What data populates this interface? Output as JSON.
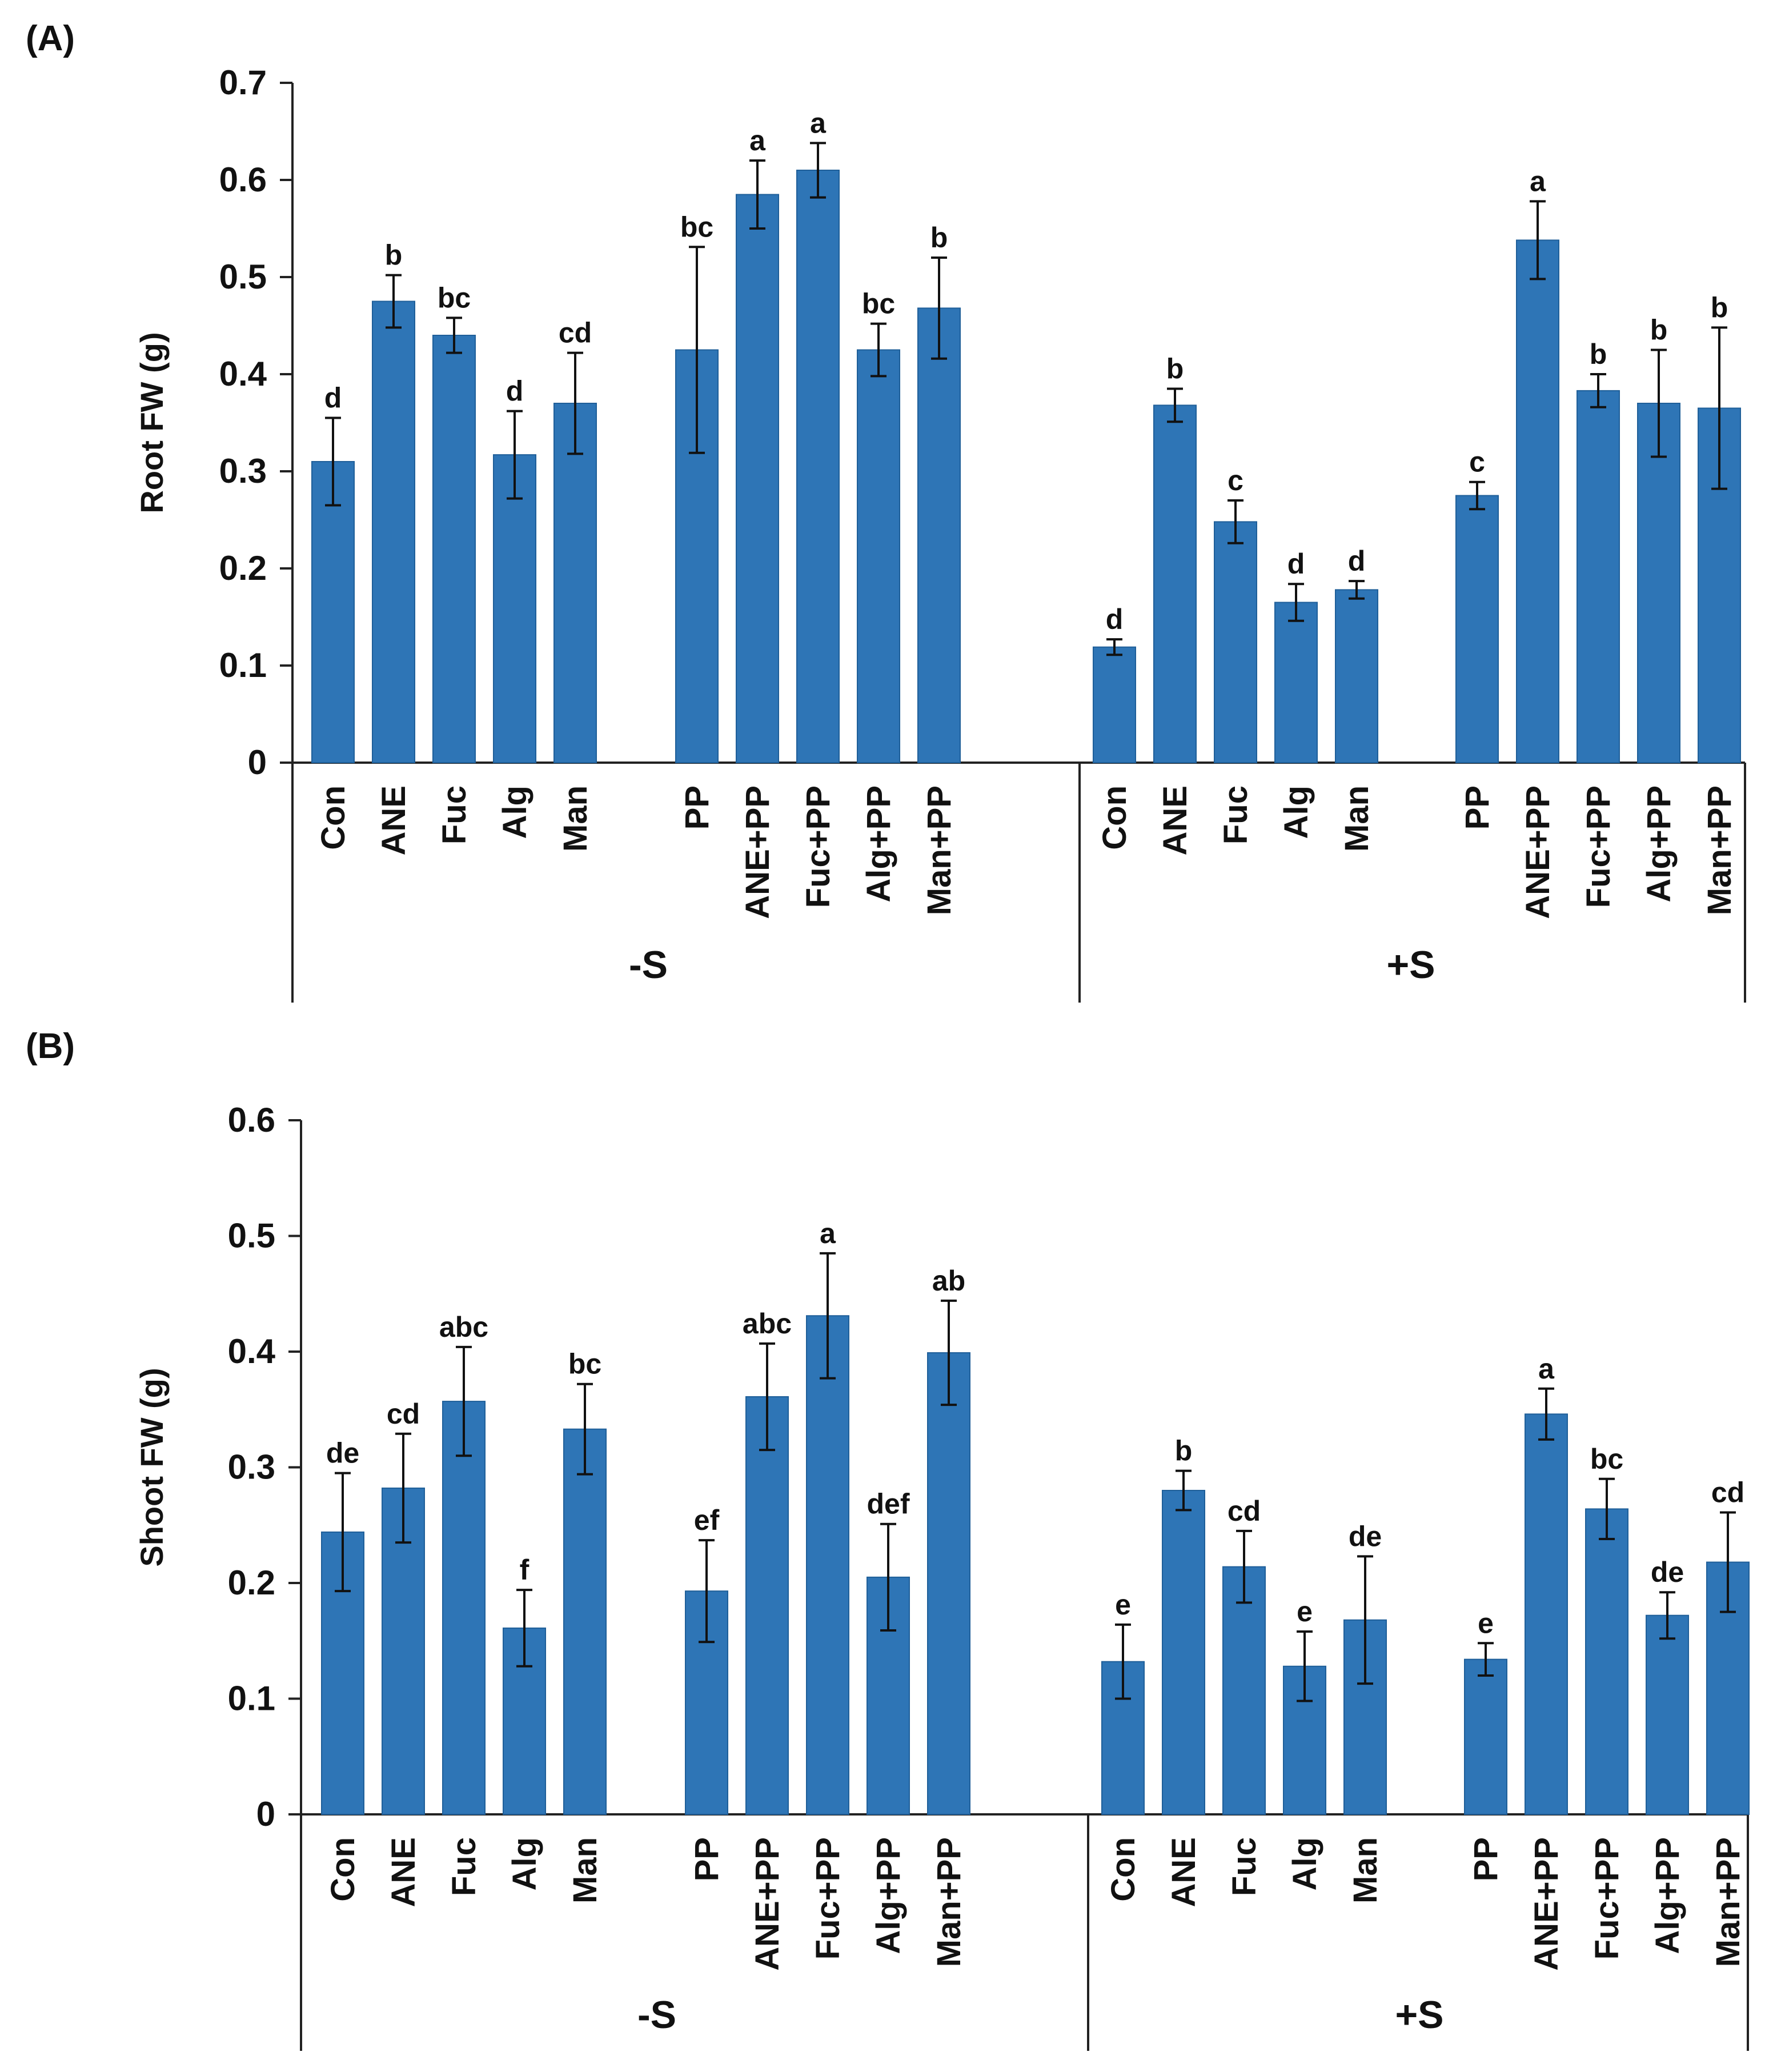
{
  "chart_data": [
    {
      "panel_label": "(A)",
      "type": "bar",
      "ylabel": "Root FW (g)",
      "ylim": [
        0,
        0.7
      ],
      "yticks": [
        "0",
        "0.1",
        "0.2",
        "0.3",
        "0.4",
        "0.5",
        "0.6",
        "0.7"
      ],
      "color": "#2e75b6",
      "groups": [
        {
          "label": "-S",
          "bars": [
            {
              "category": "Con",
              "value": 0.31,
              "error": 0.045,
              "letter": "d"
            },
            {
              "category": "ANE",
              "value": 0.475,
              "error": 0.027,
              "letter": "b"
            },
            {
              "category": "Fuc",
              "value": 0.44,
              "error": 0.018,
              "letter": "bc"
            },
            {
              "category": "Alg",
              "value": 0.317,
              "error": 0.045,
              "letter": "d"
            },
            {
              "category": "Man",
              "value": 0.37,
              "error": 0.052,
              "letter": "cd"
            },
            {
              "category": "PP",
              "value": 0.425,
              "error": 0.106,
              "letter": "bc"
            },
            {
              "category": "ANE+PP",
              "value": 0.585,
              "error": 0.035,
              "letter": "a"
            },
            {
              "category": "Fuc+PP",
              "value": 0.61,
              "error": 0.028,
              "letter": "a"
            },
            {
              "category": "Alg+PP",
              "value": 0.425,
              "error": 0.027,
              "letter": "bc"
            },
            {
              "category": "Man+PP",
              "value": 0.468,
              "error": 0.052,
              "letter": "b"
            }
          ]
        },
        {
          "label": "+S",
          "bars": [
            {
              "category": "Con",
              "value": 0.119,
              "error": 0.008,
              "letter": "d"
            },
            {
              "category": "ANE",
              "value": 0.368,
              "error": 0.017,
              "letter": "b"
            },
            {
              "category": "Fuc",
              "value": 0.248,
              "error": 0.022,
              "letter": "c"
            },
            {
              "category": "Alg",
              "value": 0.165,
              "error": 0.019,
              "letter": "d"
            },
            {
              "category": "Man",
              "value": 0.178,
              "error": 0.009,
              "letter": "d"
            },
            {
              "category": "PP",
              "value": 0.275,
              "error": 0.014,
              "letter": "c"
            },
            {
              "category": "ANE+PP",
              "value": 0.538,
              "error": 0.04,
              "letter": "a"
            },
            {
              "category": "Fuc+PP",
              "value": 0.383,
              "error": 0.017,
              "letter": "b"
            },
            {
              "category": "Alg+PP",
              "value": 0.37,
              "error": 0.055,
              "letter": "b"
            },
            {
              "category": "Man+PP",
              "value": 0.365,
              "error": 0.083,
              "letter": "b"
            }
          ]
        }
      ]
    },
    {
      "panel_label": "(B)",
      "type": "bar",
      "ylabel": "Shoot FW (g)",
      "ylim": [
        0,
        0.6
      ],
      "yticks": [
        "0",
        "0.1",
        "0.2",
        "0.3",
        "0.4",
        "0.5",
        "0.6"
      ],
      "color": "#2e75b6",
      "groups": [
        {
          "label": "-S",
          "bars": [
            {
              "category": "Con",
              "value": 0.244,
              "error": 0.051,
              "letter": "de"
            },
            {
              "category": "ANE",
              "value": 0.282,
              "error": 0.047,
              "letter": "cd"
            },
            {
              "category": "Fuc",
              "value": 0.357,
              "error": 0.047,
              "letter": "abc"
            },
            {
              "category": "Alg",
              "value": 0.161,
              "error": 0.033,
              "letter": "f"
            },
            {
              "category": "Man",
              "value": 0.333,
              "error": 0.039,
              "letter": "bc"
            },
            {
              "category": "PP",
              "value": 0.193,
              "error": 0.044,
              "letter": "ef"
            },
            {
              "category": "ANE+PP",
              "value": 0.361,
              "error": 0.046,
              "letter": "abc"
            },
            {
              "category": "Fuc+PP",
              "value": 0.431,
              "error": 0.054,
              "letter": "a"
            },
            {
              "category": "Alg+PP",
              "value": 0.205,
              "error": 0.046,
              "letter": "def"
            },
            {
              "category": "Man+PP",
              "value": 0.399,
              "error": 0.045,
              "letter": "ab"
            }
          ]
        },
        {
          "label": "+S",
          "bars": [
            {
              "category": "Con",
              "value": 0.132,
              "error": 0.032,
              "letter": "e"
            },
            {
              "category": "ANE",
              "value": 0.28,
              "error": 0.017,
              "letter": "b"
            },
            {
              "category": "Fuc",
              "value": 0.214,
              "error": 0.031,
              "letter": "cd"
            },
            {
              "category": "Alg",
              "value": 0.128,
              "error": 0.03,
              "letter": "e"
            },
            {
              "category": "Man",
              "value": 0.168,
              "error": 0.055,
              "letter": "de"
            },
            {
              "category": "PP",
              "value": 0.134,
              "error": 0.014,
              "letter": "e"
            },
            {
              "category": "ANE+PP",
              "value": 0.346,
              "error": 0.022,
              "letter": "a"
            },
            {
              "category": "Fuc+PP",
              "value": 0.264,
              "error": 0.026,
              "letter": "bc"
            },
            {
              "category": "Alg+PP",
              "value": 0.172,
              "error": 0.02,
              "letter": "de"
            },
            {
              "category": "Man+PP",
              "value": 0.218,
              "error": 0.043,
              "letter": "cd"
            }
          ]
        }
      ]
    }
  ]
}
